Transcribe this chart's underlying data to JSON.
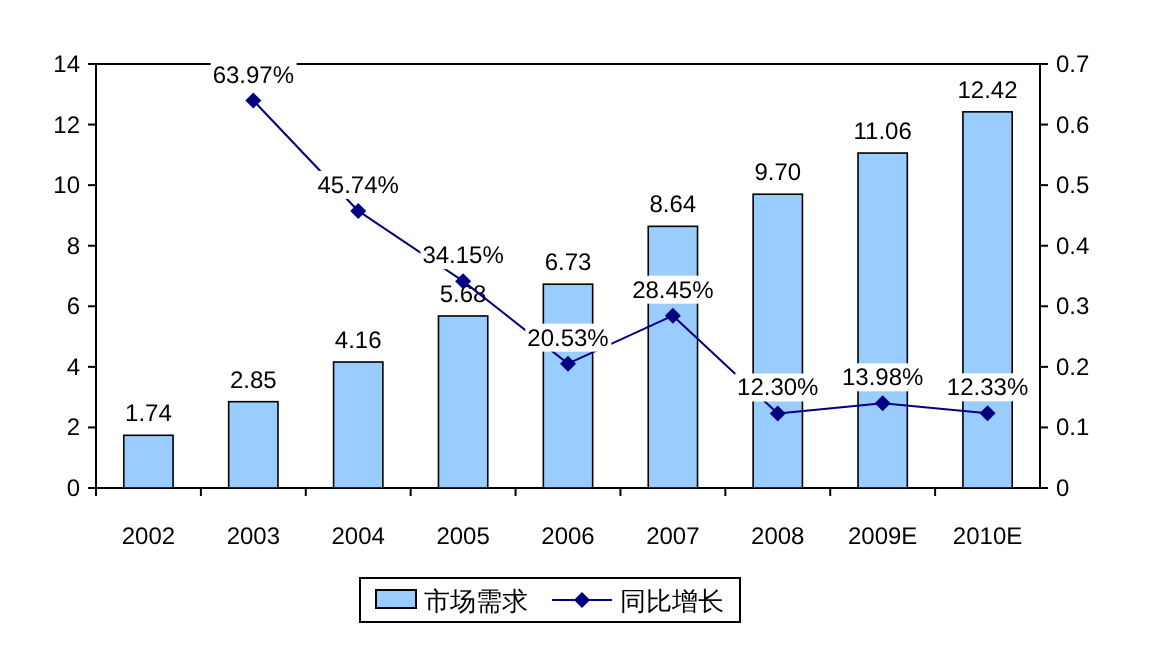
{
  "chart_data": {
    "type": "bar",
    "categories": [
      "2002",
      "2003",
      "2004",
      "2005",
      "2006",
      "2007",
      "2008",
      "2009E",
      "2010E"
    ],
    "series": [
      {
        "name": "市场需求",
        "color": "#99ccff",
        "values": [
          1.74,
          2.85,
          4.16,
          5.68,
          6.73,
          8.64,
          9.7,
          11.06,
          12.42
        ],
        "value_labels": [
          "1.74",
          "2.85",
          "4.16",
          "5.68",
          "6.73",
          "8.64",
          "9.70",
          "11.06",
          "12.42"
        ]
      },
      {
        "name": "同比增长",
        "type": "line",
        "axis": "y2",
        "color": "#000080",
        "marker": "diamond",
        "values": [
          null,
          0.6397,
          0.4574,
          0.3415,
          0.2053,
          0.2845,
          0.123,
          0.1398,
          0.1233
        ],
        "value_labels": [
          null,
          "63.97%",
          "45.74%",
          "34.15%",
          "20.53%",
          "28.45%",
          "12.30%",
          "13.98%",
          "12.33%"
        ]
      }
    ],
    "ylim": [
      0,
      14
    ],
    "yticks": [
      0,
      2,
      4,
      6,
      8,
      10,
      12,
      14
    ],
    "y2lim": [
      0,
      0.7
    ],
    "y2ticks": [
      0,
      0.1,
      0.2,
      0.3,
      0.4,
      0.5,
      0.6,
      0.7
    ],
    "grid": false,
    "legend": "bottom"
  }
}
